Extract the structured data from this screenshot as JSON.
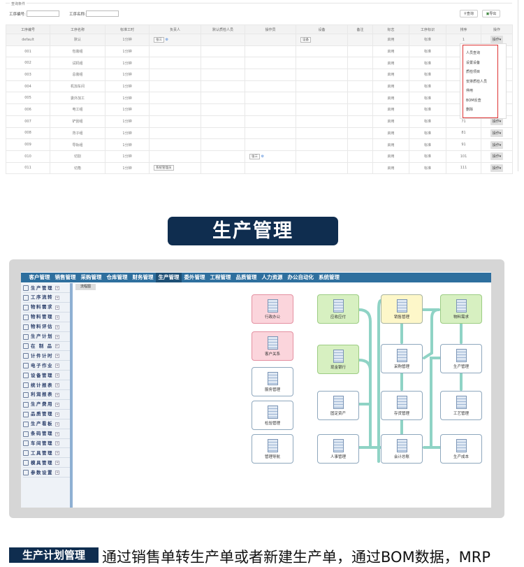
{
  "query": {
    "legend": "查询条件",
    "code_label": "工序编号:",
    "name_label": "工序名称:",
    "code_value": "",
    "name_value": "",
    "search_btn": "查询",
    "export_btn": "导出"
  },
  "table": {
    "headers": [
      "工序编号",
      "工序名称",
      "标准工时",
      "负责人",
      "默认质检人员",
      "操作员",
      "设备",
      "备注",
      "标志",
      "工序标识",
      "排序",
      "操作"
    ],
    "rows": [
      {
        "code": "default",
        "name": "默认",
        "time": "1分钟",
        "owner": "张三",
        "operator": "",
        "device": "设备",
        "flag": "启用",
        "mark": "标准",
        "sort": "1"
      },
      {
        "code": "001",
        "name": "包装组",
        "time": "1分钟",
        "owner": "",
        "operator": "",
        "device": "",
        "flag": "启用",
        "mark": "标准",
        "sort": ""
      },
      {
        "code": "002",
        "name": "试机组",
        "time": "1分钟",
        "owner": "",
        "operator": "",
        "device": "",
        "flag": "启用",
        "mark": "标准",
        "sort": ""
      },
      {
        "code": "003",
        "name": "总装组",
        "time": "1分钟",
        "owner": "",
        "operator": "",
        "device": "",
        "flag": "启用",
        "mark": "标准",
        "sort": ""
      },
      {
        "code": "004",
        "name": "机加车间",
        "time": "1分钟",
        "owner": "",
        "operator": "",
        "device": "",
        "flag": "启用",
        "mark": "标准",
        "sort": ""
      },
      {
        "code": "005",
        "name": "委外加工",
        "time": "1分钟",
        "owner": "",
        "operator": "",
        "device": "",
        "flag": "启用",
        "mark": "标准",
        "sort": ""
      },
      {
        "code": "006",
        "name": "电工组",
        "time": "1分钟",
        "owner": "",
        "operator": "",
        "device": "",
        "flag": "启用",
        "mark": "标准",
        "sort": ""
      },
      {
        "code": "007",
        "name": "铲刮组",
        "time": "1分钟",
        "owner": "",
        "operator": "",
        "device": "",
        "flag": "启用",
        "mark": "标准",
        "sort": "71"
      },
      {
        "code": "008",
        "name": "背子组",
        "time": "1分钟",
        "owner": "",
        "operator": "",
        "device": "",
        "flag": "启用",
        "mark": "标准",
        "sort": "81"
      },
      {
        "code": "009",
        "name": "导轨组",
        "time": "1分钟",
        "owner": "",
        "operator": "",
        "device": "",
        "flag": "启用",
        "mark": "标准",
        "sort": "91"
      },
      {
        "code": "010",
        "name": "切割",
        "time": "1分钟",
        "owner": "",
        "operator": "张三",
        "device": "",
        "flag": "启用",
        "mark": "标准",
        "sort": "101"
      },
      {
        "code": "011",
        "name": "切角",
        "time": "1分钟",
        "owner": "系统管理员",
        "operator": "",
        "device": "",
        "flag": "启用",
        "mark": "标准",
        "sort": "111"
      }
    ],
    "action_label": "操作▾"
  },
  "menu": [
    "人员查询",
    "设置设备",
    "质检项目",
    "安排质检人员",
    "停用",
    "BOM反查",
    "删除"
  ],
  "banner": "生产管理",
  "app": {
    "nav": [
      "客户管理",
      "销售管理",
      "采购管理",
      "仓库管理",
      "财务管理",
      "生产管理",
      "委外管理",
      "工程管理",
      "品质管理",
      "人力资源",
      "办公自动化",
      "系统管理"
    ],
    "active_nav": "生产管理",
    "sidebar": [
      "生产管理",
      "工序流转",
      "物料需求",
      "物料管理",
      "物料评估",
      "生产计划",
      "在 制 品",
      "计件计时",
      "电子作业",
      "设备管理",
      "统计报表",
      "利润报表",
      "生产费用",
      "品质管理",
      "生产看板",
      "条码管理",
      "车间管理",
      "工具管理",
      "模具管理",
      "参数设置"
    ],
    "tab": "流程图",
    "nodes": [
      {
        "label": "行政办公",
        "style": "pink"
      },
      {
        "label": "客户关系",
        "style": "pink"
      },
      {
        "label": "服务管理",
        "style": "plain"
      },
      {
        "label": "检验管理",
        "style": "plain"
      },
      {
        "label": "管理导航",
        "style": "plain"
      },
      {
        "label": "应收应付",
        "style": "green"
      },
      {
        "label": "现金银行",
        "style": "green"
      },
      {
        "label": "固定资产",
        "style": "plain"
      },
      {
        "label": "人事管理",
        "style": "plain"
      },
      {
        "label": "销售管理",
        "style": "yellow"
      },
      {
        "label": "采购管理",
        "style": "plain"
      },
      {
        "label": "存货管理",
        "style": "plain"
      },
      {
        "label": "会计总账",
        "style": "plain"
      },
      {
        "label": "物料需求",
        "style": "green"
      },
      {
        "label": "生产管理",
        "style": "plain"
      },
      {
        "label": "工艺管理",
        "style": "plain"
      },
      {
        "label": "生产成本",
        "style": "plain"
      }
    ],
    "connector_color": "#8fd3c5",
    "nav_color": "#2e6f9e"
  },
  "footer": {
    "tag": "生产计划管理",
    "text": "通过销售单转生产单或者新建生产单，通过BOM数据，MRP"
  }
}
